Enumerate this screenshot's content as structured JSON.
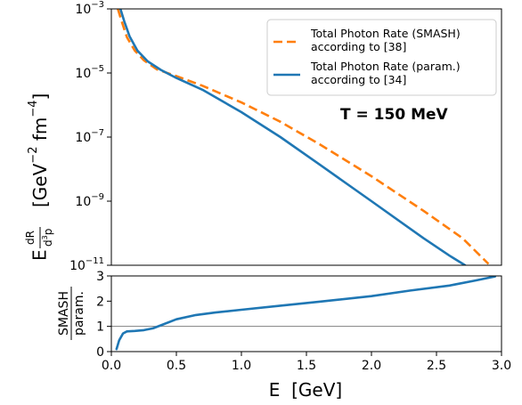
{
  "chart_data": [
    {
      "type": "line",
      "panel": "top",
      "yscale": "log",
      "xlim": [
        0.0,
        3.0
      ],
      "ylim": [
        1e-11,
        0.001
      ],
      "yticks": [
        {
          "value": 0.001,
          "base": "10",
          "exp": "−3"
        },
        {
          "value": 1e-05,
          "base": "10",
          "exp": "−5"
        },
        {
          "value": 1e-07,
          "base": "10",
          "exp": "−7"
        },
        {
          "value": 1e-09,
          "base": "10",
          "exp": "−9"
        },
        {
          "value": 1e-11,
          "base": "10",
          "exp": "−11"
        }
      ],
      "ylabel": {
        "prefix": "E",
        "frac_num": "dR",
        "frac_den_d": "d",
        "frac_den_exp": "3",
        "frac_den_p": "p",
        "unit_open": "[GeV",
        "unit_exp1": "−2",
        "unit_mid": " fm",
        "unit_exp2": "−4",
        "unit_close": "]"
      },
      "annotation": "T = 150 MeV",
      "legend_position": "top-right",
      "series": [
        {
          "name_line1": "Total Photon Rate (SMASH)",
          "name_line2": "according to [38]",
          "color": "#ff7f0e",
          "dashed": true,
          "x": [
            0.05,
            0.08,
            0.12,
            0.18,
            0.25,
            0.35,
            0.5,
            0.7,
            1.0,
            1.3,
            1.6,
            2.0,
            2.4,
            2.7,
            2.9
          ],
          "y": [
            0.001,
            0.0004,
            0.00013,
            5e-05,
            2.5e-05,
            1.3e-05,
            8e-06,
            4e-06,
            1.2e-06,
            3e-07,
            6e-08,
            6e-09,
            5e-10,
            7e-11,
            1.1e-11
          ]
        },
        {
          "name_line1": "Total Photon Rate (param.)",
          "name_line2": "according to [34]",
          "color": "#1f77b4",
          "dashed": false,
          "x": [
            0.07,
            0.1,
            0.14,
            0.2,
            0.28,
            0.38,
            0.5,
            0.7,
            1.0,
            1.3,
            1.6,
            2.0,
            2.4,
            2.6,
            2.72
          ],
          "y": [
            0.001,
            0.0004,
            0.00014,
            5e-05,
            2.3e-05,
            1.25e-05,
            7e-06,
            3e-06,
            6e-07,
            1e-07,
            1.4e-08,
            1e-09,
            7e-11,
            2e-11,
            1e-11
          ]
        }
      ]
    },
    {
      "type": "line",
      "panel": "bottom",
      "xlim": [
        0.0,
        3.0
      ],
      "ylim": [
        0,
        3
      ],
      "xticks": [
        "0.0",
        "0.5",
        "1.0",
        "1.5",
        "2.0",
        "2.5",
        "3.0"
      ],
      "xtick_values": [
        0.0,
        0.5,
        1.0,
        1.5,
        2.0,
        2.5,
        3.0
      ],
      "yticks": [
        "0",
        "1",
        "2",
        "3"
      ],
      "ytick_values": [
        0,
        1,
        2,
        3
      ],
      "xlabel": "E  [GeV]",
      "ylabel_num": "SMASH",
      "ylabel_den": "param.",
      "reference_line": 1,
      "reference_color": "#808080",
      "series": [
        {
          "name": "",
          "color": "#1f77b4",
          "x": [
            0.04,
            0.06,
            0.09,
            0.12,
            0.18,
            0.25,
            0.32,
            0.4,
            0.5,
            0.65,
            0.8,
            1.0,
            1.3,
            1.6,
            2.0,
            2.3,
            2.6,
            2.8,
            2.95
          ],
          "y": [
            0.1,
            0.45,
            0.72,
            0.8,
            0.82,
            0.85,
            0.92,
            1.08,
            1.28,
            1.45,
            1.55,
            1.66,
            1.82,
            1.98,
            2.2,
            2.42,
            2.62,
            2.82,
            2.98
          ]
        }
      ]
    }
  ]
}
